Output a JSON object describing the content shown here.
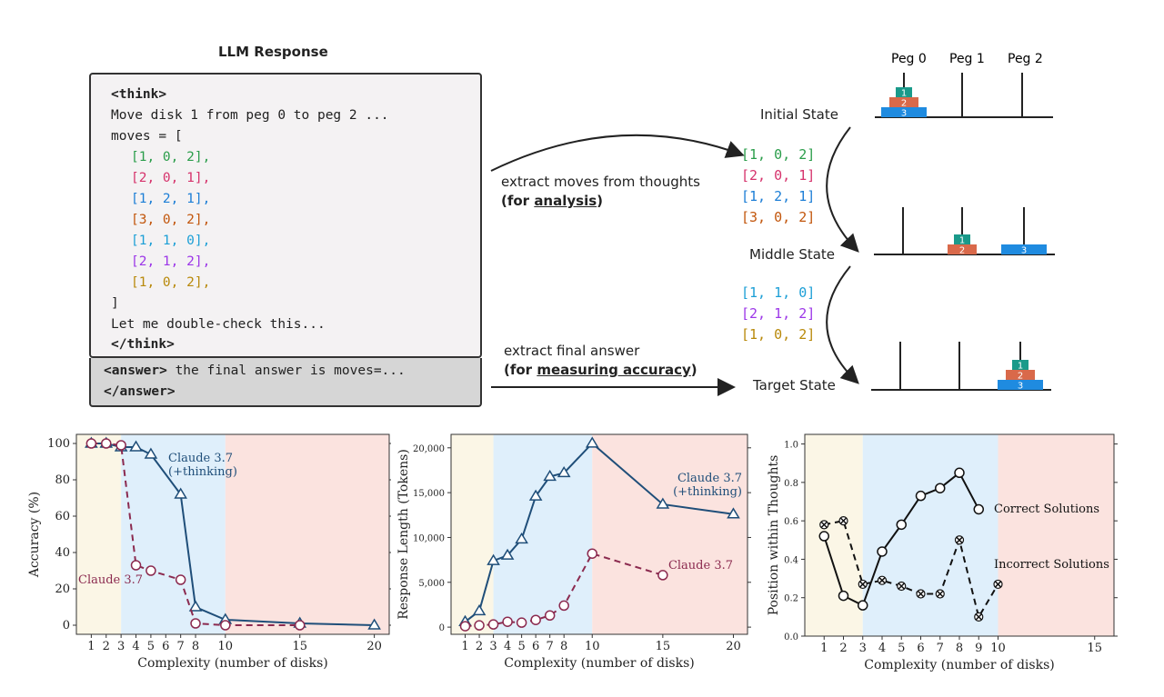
{
  "llm_response": {
    "title": "LLM Response",
    "think_open": "<think>",
    "line1": "Move disk 1 from peg 0 to peg 2 ...",
    "line2": "moves = [",
    "moves": [
      {
        "text": "[1, 0, 2],",
        "color": "#2a9d4a"
      },
      {
        "text": "[2, 0, 1],",
        "color": "#d6336c"
      },
      {
        "text": "[1, 2, 1],",
        "color": "#1c7ed6"
      },
      {
        "text": "[3, 0, 2],",
        "color": "#c2560c"
      },
      {
        "text": "[1, 1, 0],",
        "color": "#1c9fd6"
      },
      {
        "text": "[2, 1, 2],",
        "color": "#9c36e8"
      },
      {
        "text": "[1, 0, 2],",
        "color": "#b8890a"
      }
    ],
    "close_bracket": "]",
    "line_check": "Let me double-check this...",
    "think_close": "</think>",
    "answer_open": "<answer>",
    "answer_text": " the final answer is moves=...",
    "answer_close": "</answer>"
  },
  "arrows": {
    "extract_moves": "extract moves  from thoughts",
    "for_prefix": "(for ",
    "analysis": "analysis",
    "for_suffix": ")",
    "extract_final": "extract final answer",
    "measuring": "measuring accuracy",
    "measuring_suffix": ")"
  },
  "hanoi": {
    "peg_labels": [
      "Peg 0",
      "Peg 1",
      "Peg 2"
    ],
    "states": [
      "Initial State",
      "Middle State",
      "Target State"
    ],
    "disk_labels": [
      "1",
      "2",
      "3"
    ],
    "disk_colors": {
      "1": "#1a9a8a",
      "2": "#d9694a",
      "3": "#1f8be0"
    },
    "moves_first": [
      {
        "text": "[1, 0, 2]",
        "color": "#2a9d4a"
      },
      {
        "text": "[2, 0, 1]",
        "color": "#d6336c"
      },
      {
        "text": "[1, 2, 1]",
        "color": "#1c7ed6"
      },
      {
        "text": "[3, 0, 2]",
        "color": "#c2560c"
      }
    ],
    "moves_second": [
      {
        "text": "[1, 1, 0]",
        "color": "#1c9fd6"
      },
      {
        "text": "[2, 1, 2]",
        "color": "#9c36e8"
      },
      {
        "text": "[1, 0, 2]",
        "color": "#b8890a"
      }
    ]
  },
  "chart_data": [
    {
      "type": "line",
      "xlabel": "Complexity (number of disks)",
      "ylabel": "Accuracy (%)",
      "xlim": [
        0,
        21
      ],
      "ylim": [
        -5,
        105
      ],
      "xticks": [
        1,
        2,
        3,
        4,
        5,
        6,
        7,
        8,
        10,
        15,
        20
      ],
      "yticks": [
        0,
        20,
        40,
        60,
        80,
        100
      ],
      "regions": [
        {
          "from": 0,
          "to": 3,
          "color": "#fbf6e6"
        },
        {
          "from": 3,
          "to": 10,
          "color": "#dfeffb"
        },
        {
          "from": 10,
          "to": 21,
          "color": "#fbe3df"
        }
      ],
      "series": [
        {
          "name": "Claude 3.7\n(+thinking)",
          "label_lines": [
            "Claude 3.7",
            "(+thinking)"
          ],
          "color": "#1f4e79",
          "dash": false,
          "marker": "triangle",
          "x": [
            1,
            2,
            3,
            4,
            5,
            7,
            8,
            10,
            15,
            20
          ],
          "values": [
            100,
            100,
            98,
            98,
            94,
            72,
            10,
            3,
            1,
            0
          ]
        },
        {
          "name": "Claude 3.7",
          "label_lines": [
            "Claude 3.7"
          ],
          "color": "#8b2a4f",
          "dash": true,
          "marker": "circle",
          "x": [
            1,
            2,
            3,
            4,
            5,
            7,
            8,
            10,
            15
          ],
          "values": [
            100,
            100,
            99,
            33,
            30,
            25,
            1,
            0,
            0
          ]
        }
      ]
    },
    {
      "type": "line",
      "xlabel": "Complexity (number of disks)",
      "ylabel": "Response Length (Tokens)",
      "xlim": [
        0,
        21
      ],
      "ylim": [
        -800,
        21500
      ],
      "xticks": [
        1,
        2,
        3,
        4,
        5,
        6,
        7,
        8,
        10,
        15,
        20
      ],
      "yticks": [
        0,
        5000,
        10000,
        15000,
        20000
      ],
      "ytick_labels": [
        "0",
        "5,000",
        "10,000",
        "15,000",
        "20,000"
      ],
      "regions": [
        {
          "from": 0,
          "to": 3,
          "color": "#fbf6e6"
        },
        {
          "from": 3,
          "to": 10,
          "color": "#dfeffb"
        },
        {
          "from": 10,
          "to": 21,
          "color": "#fbe3df"
        }
      ],
      "series": [
        {
          "name": "Claude 3.7\n(+thinking)",
          "label_lines": [
            "Claude 3.7",
            "(+thinking)"
          ],
          "color": "#1f4e79",
          "dash": false,
          "marker": "triangle",
          "x": [
            1,
            2,
            3,
            4,
            5,
            6,
            7,
            8,
            10,
            15,
            20
          ],
          "values": [
            600,
            1800,
            7400,
            8000,
            9800,
            14600,
            16800,
            17200,
            20500,
            13700,
            12600
          ]
        },
        {
          "name": "Claude 3.7",
          "label_lines": [
            "Claude 3.7"
          ],
          "color": "#8b2a4f",
          "dash": true,
          "marker": "circle",
          "x": [
            1,
            2,
            3,
            4,
            5,
            6,
            7,
            8,
            10,
            15
          ],
          "values": [
            100,
            200,
            300,
            600,
            500,
            800,
            1300,
            2400,
            8200,
            5800
          ]
        }
      ]
    },
    {
      "type": "line",
      "xlabel": "Complexity (number of disks)",
      "ylabel": "Position within Thoughts",
      "xlim": [
        0,
        16
      ],
      "ylim": [
        0,
        1.05
      ],
      "xticks": [
        1,
        2,
        3,
        4,
        5,
        6,
        7,
        8,
        9,
        10,
        15
      ],
      "yticks": [
        0.0,
        0.2,
        0.4,
        0.6,
        0.8,
        1.0
      ],
      "ytick_labels": [
        "0.0",
        "0.2",
        "0.4",
        "0.6",
        "0.8",
        "1.0"
      ],
      "regions": [
        {
          "from": 0,
          "to": 3,
          "color": "#fbf6e6"
        },
        {
          "from": 3,
          "to": 10,
          "color": "#dfeffb"
        },
        {
          "from": 10,
          "to": 16,
          "color": "#fbe3df"
        }
      ],
      "series": [
        {
          "name": "Correct Solutions",
          "label_lines": [
            "Correct Solutions"
          ],
          "color": "#111111",
          "dash": false,
          "marker": "circle",
          "x": [
            1,
            2,
            3,
            4,
            5,
            6,
            7,
            8,
            9
          ],
          "values": [
            0.52,
            0.21,
            0.16,
            0.44,
            0.58,
            0.73,
            0.77,
            0.85,
            0.66
          ]
        },
        {
          "name": "Incorrect Solutions",
          "label_lines": [
            "Incorrect Solutions"
          ],
          "color": "#111111",
          "dash": true,
          "marker": "x",
          "x": [
            1,
            2,
            3,
            4,
            5,
            6,
            7,
            8,
            9,
            10
          ],
          "values": [
            0.58,
            0.6,
            0.27,
            0.29,
            0.26,
            0.22,
            0.22,
            0.5,
            0.1,
            0.27
          ]
        }
      ]
    }
  ]
}
